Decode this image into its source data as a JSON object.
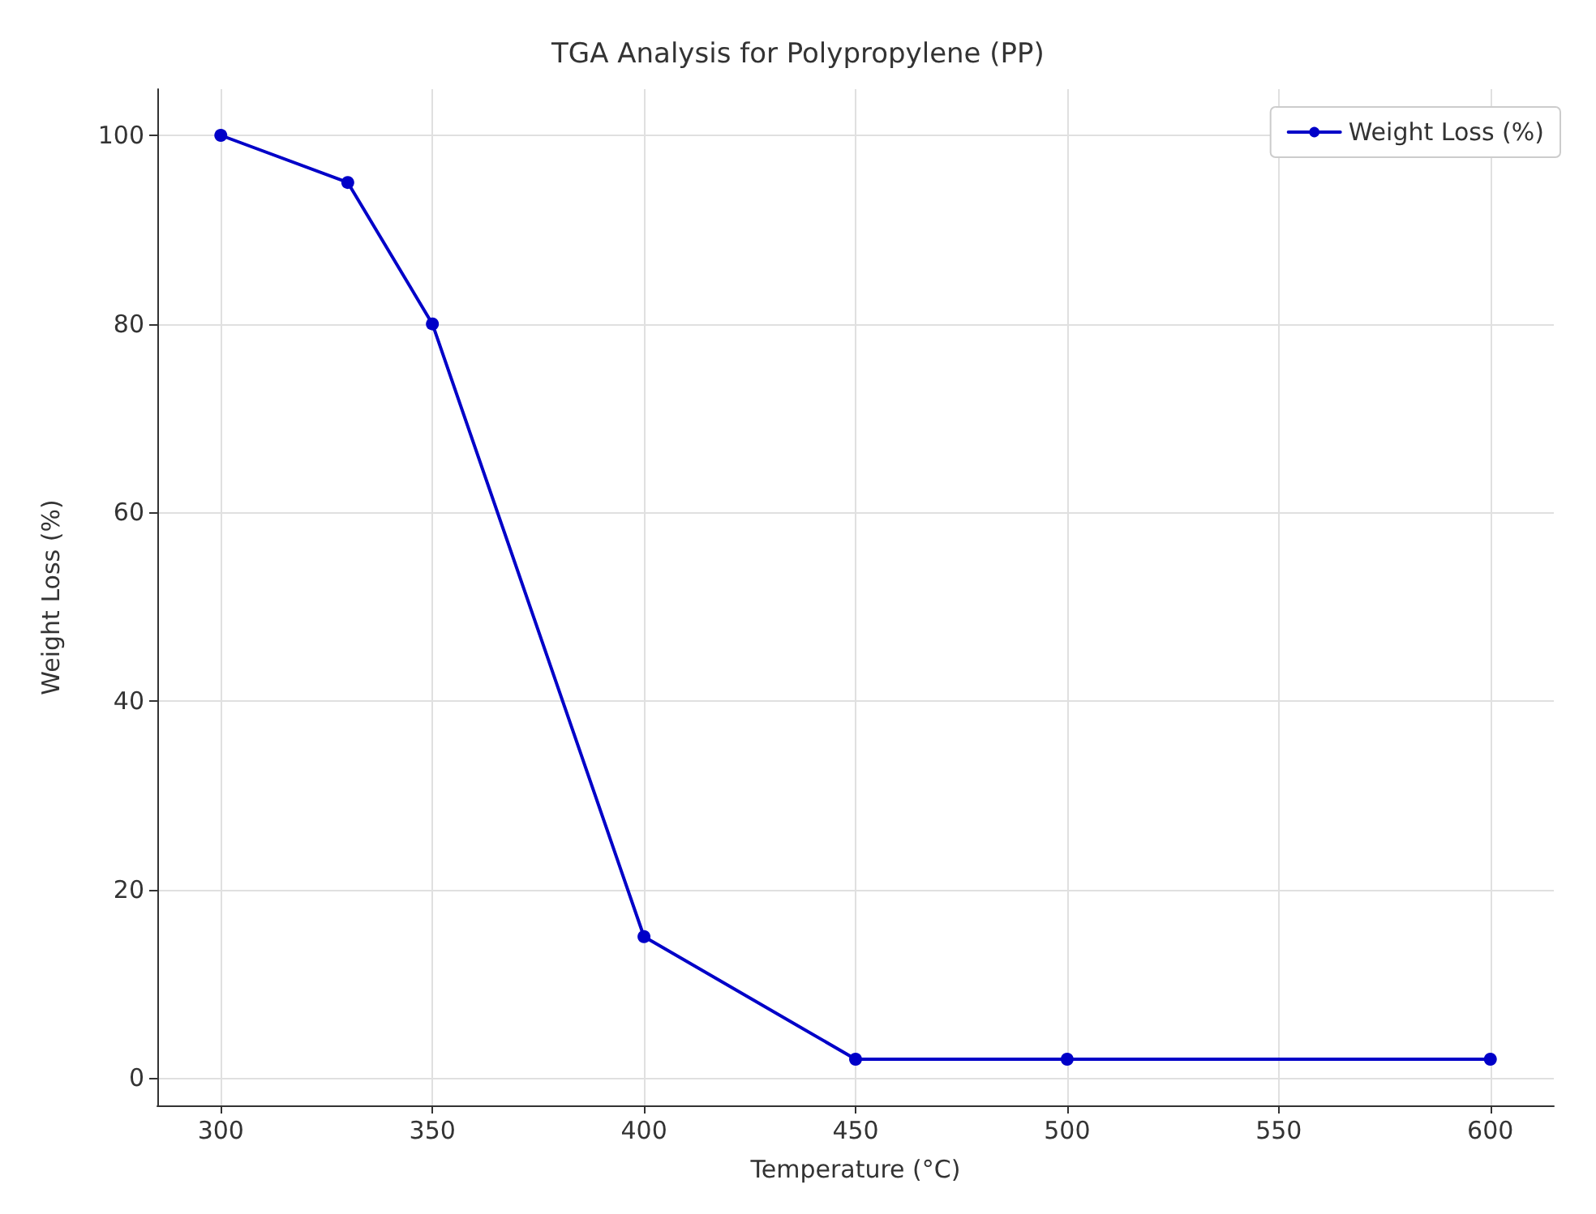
{
  "chart_data": {
    "type": "line",
    "title": "TGA Analysis for Polypropylene (PP)",
    "xlabel": "Temperature (°C)",
    "ylabel": "Weight Loss (%)",
    "x": [
      300,
      330,
      350,
      400,
      450,
      500,
      600
    ],
    "series": [
      {
        "name": "Weight Loss (%)",
        "color": "#0000c8",
        "values": [
          100,
          95,
          80,
          15,
          2,
          2,
          2
        ]
      }
    ],
    "xlim": [
      285,
      615
    ],
    "xticks": [
      300,
      350,
      400,
      450,
      500,
      550,
      600
    ],
    "ylim": [
      -2.9,
      104.9
    ],
    "yticks": [
      0,
      20,
      40,
      60,
      80,
      100
    ],
    "grid": true,
    "legend": "top right",
    "marker": "circle",
    "line_style": "solid"
  }
}
